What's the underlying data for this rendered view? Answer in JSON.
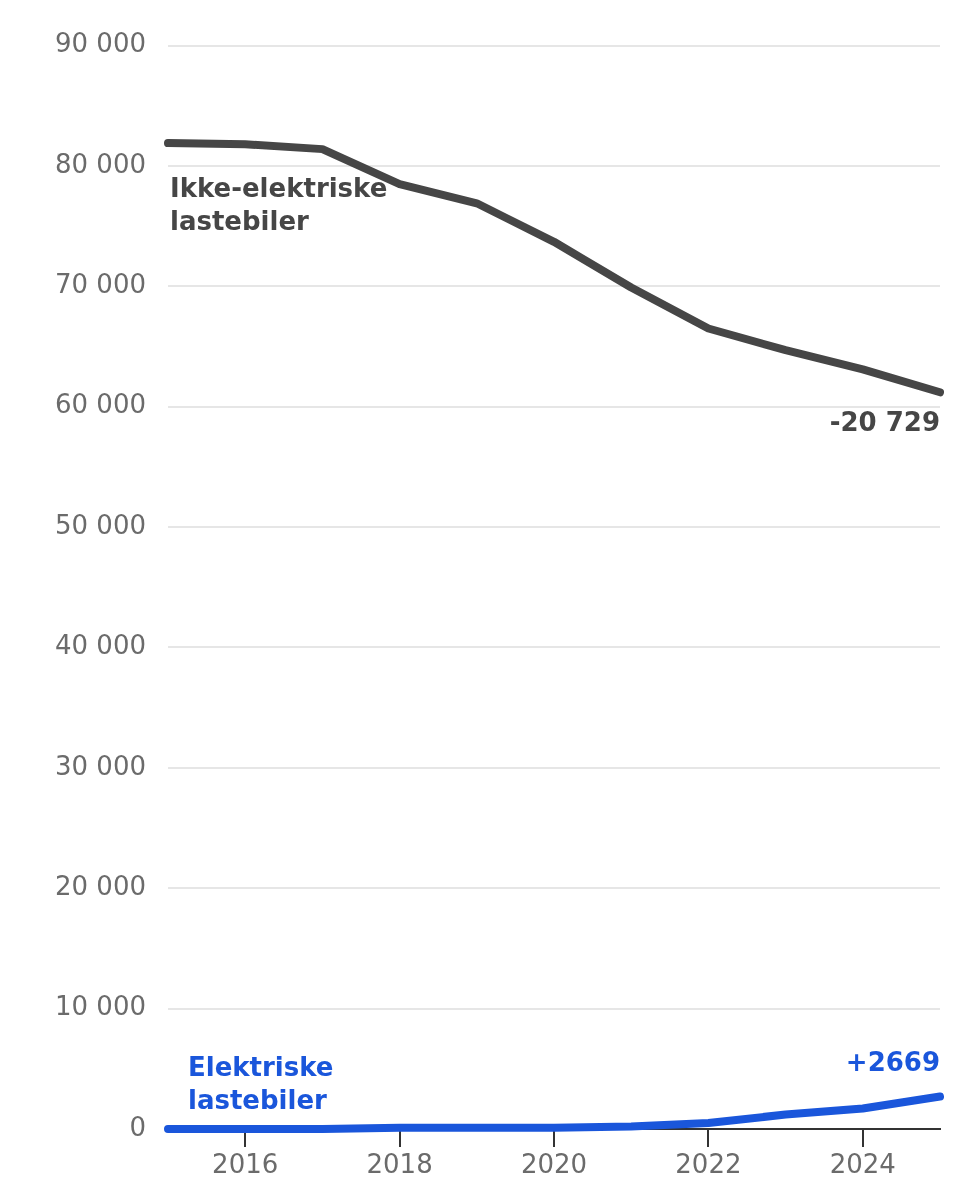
{
  "chart_data": {
    "type": "line",
    "x": [
      2015,
      2016,
      2017,
      2018,
      2019,
      2020,
      2021,
      2022,
      2023,
      2024,
      2025
    ],
    "series": [
      {
        "name": "Ikke-elektriske lastebiler",
        "color": "#464646",
        "values": [
          81900,
          81800,
          81400,
          78500,
          76900,
          73700,
          69900,
          66500,
          64700,
          63100,
          61200
        ]
      },
      {
        "name": "Elektriske lastebiler",
        "color": "#1a56db",
        "values": [
          0,
          0,
          0,
          100,
          100,
          100,
          200,
          500,
          1200,
          1700,
          2700
        ]
      }
    ],
    "xlim": [
      2015,
      2025
    ],
    "xticks": [
      2016,
      2018,
      2020,
      2022,
      2024
    ],
    "ylim": [
      0,
      90000
    ],
    "yticks": [
      0,
      {
        "value": 10000,
        "label": "10 000"
      },
      {
        "value": 20000,
        "label": "20 000"
      },
      {
        "value": 30000,
        "label": "30 000"
      },
      {
        "value": 40000,
        "label": "40 000"
      },
      {
        "value": 50000,
        "label": "50 000"
      },
      {
        "value": 60000,
        "label": "60 000"
      },
      {
        "value": 70000,
        "label": "70 000"
      },
      {
        "value": 80000,
        "label": "80 000"
      },
      {
        "value": 90000,
        "label": "90 000"
      }
    ],
    "grid": "y",
    "marker": "none",
    "annotations": [
      {
        "text": "-20 729",
        "x": 2025,
        "y": 61200
      },
      {
        "text": "+2669",
        "x": 2025,
        "y": 2700
      }
    ]
  }
}
